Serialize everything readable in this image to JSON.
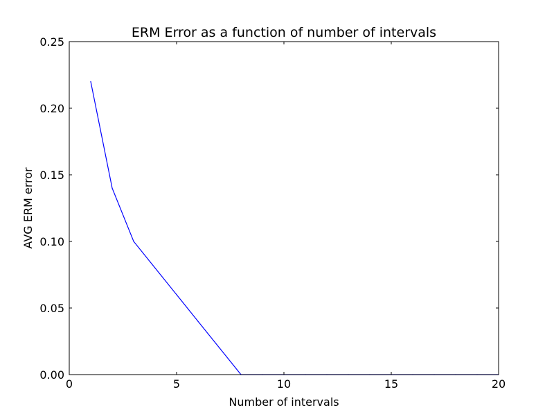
{
  "chart_data": {
    "type": "line",
    "title": "ERM Error as a function of number of intervals",
    "xlabel": "Number of intervals",
    "ylabel": "AVG ERM error",
    "xlim": [
      0,
      20
    ],
    "ylim": [
      0,
      0.25
    ],
    "x_ticks": [
      "0",
      "5",
      "10",
      "15",
      "20"
    ],
    "y_ticks": [
      "0.00",
      "0.05",
      "0.10",
      "0.15",
      "0.20",
      "0.25"
    ],
    "grid": false,
    "series": [
      {
        "color": "#0000ff",
        "x": [
          1,
          2,
          3,
          4,
          5,
          6,
          7,
          8,
          9,
          10,
          11,
          12,
          13,
          14,
          15,
          16,
          17,
          18,
          19,
          20
        ],
        "y": [
          0.22,
          0.14,
          0.1,
          0.08,
          0.06,
          0.04,
          0.02,
          0.0,
          0.0,
          0.0,
          0.0,
          0.0,
          0.0,
          0.0,
          0.0,
          0.0,
          0.0,
          0.0,
          0.0,
          0.0
        ]
      }
    ]
  }
}
